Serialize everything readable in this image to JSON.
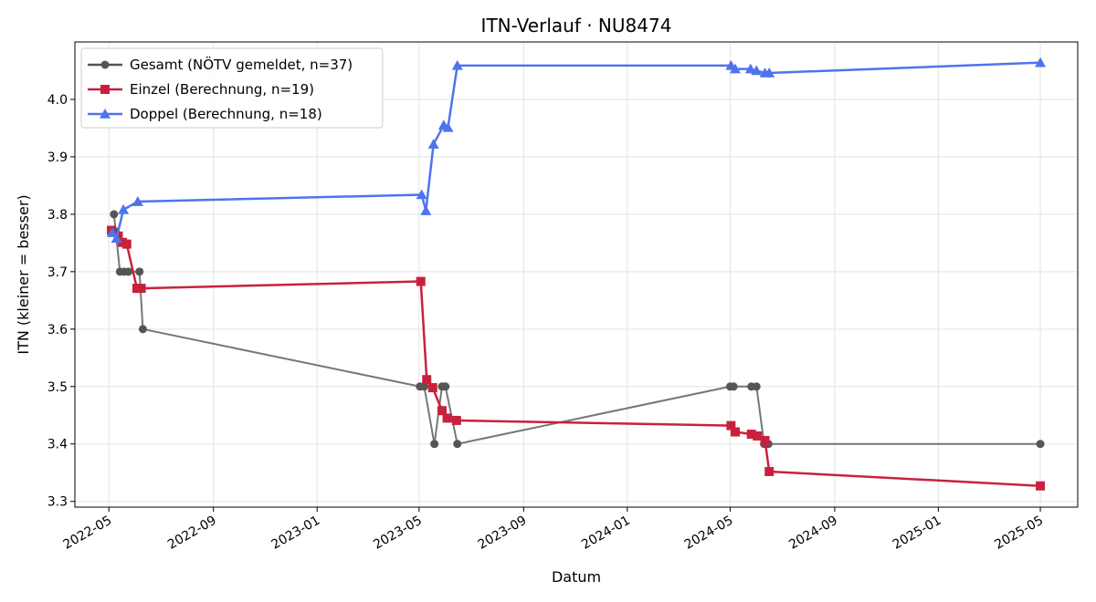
{
  "chart_data": {
    "type": "line",
    "title": "ITN-Verlauf · NU8474",
    "xlabel": "Datum",
    "ylabel": "ITN  (kleiner = besser)",
    "xlim": [
      "2022-03-22",
      "2025-06-14"
    ],
    "ylim": [
      3.29,
      4.1
    ],
    "x_ticks": [
      "2022-05",
      "2022-09",
      "2023-01",
      "2023-05",
      "2023-09",
      "2024-01",
      "2024-05",
      "2024-09",
      "2025-01",
      "2025-05"
    ],
    "y_ticks": [
      3.3,
      3.4,
      3.5,
      3.6,
      3.7,
      3.8,
      3.9,
      4.0
    ],
    "grid": true,
    "legend_position": "top-left",
    "series": [
      {
        "name": "Gesamt (NÖTV gemeldet, n=37)",
        "color": "#555555",
        "marker": "circle",
        "points": [
          [
            "2022-05-07",
            3.8
          ],
          [
            "2022-05-09",
            3.77
          ],
          [
            "2022-05-14",
            3.7
          ],
          [
            "2022-05-19",
            3.7
          ],
          [
            "2022-05-24",
            3.7
          ],
          [
            "2022-06-06",
            3.7
          ],
          [
            "2022-06-10",
            3.6
          ],
          [
            "2023-05-02",
            3.5
          ],
          [
            "2023-05-07",
            3.5
          ],
          [
            "2023-05-19",
            3.4
          ],
          [
            "2023-05-28",
            3.5
          ],
          [
            "2023-06-01",
            3.5
          ],
          [
            "2023-06-15",
            3.4
          ],
          [
            "2024-05-01",
            3.5
          ],
          [
            "2024-05-05",
            3.5
          ],
          [
            "2024-05-26",
            3.5
          ],
          [
            "2024-06-01",
            3.5
          ],
          [
            "2024-06-10",
            3.4
          ],
          [
            "2024-06-15",
            3.4
          ],
          [
            "2025-05-01",
            3.4
          ]
        ]
      },
      {
        "name": "Einzel (Berechnung, n=19)",
        "color": "#c8213e",
        "marker": "square",
        "points": [
          [
            "2022-05-04",
            3.772
          ],
          [
            "2022-05-12",
            3.762
          ],
          [
            "2022-05-17",
            3.751
          ],
          [
            "2022-05-22",
            3.748
          ],
          [
            "2022-06-03",
            3.671
          ],
          [
            "2022-06-08",
            3.671
          ],
          [
            "2023-05-03",
            3.683
          ],
          [
            "2023-05-10",
            3.512
          ],
          [
            "2023-05-17",
            3.498
          ],
          [
            "2023-05-28",
            3.458
          ],
          [
            "2023-06-03",
            3.445
          ],
          [
            "2023-06-14",
            3.441
          ],
          [
            "2024-05-02",
            3.432
          ],
          [
            "2024-05-07",
            3.421
          ],
          [
            "2024-05-26",
            3.417
          ],
          [
            "2024-06-02",
            3.414
          ],
          [
            "2024-06-11",
            3.406
          ],
          [
            "2024-06-16",
            3.352
          ],
          [
            "2025-05-01",
            3.327
          ]
        ]
      },
      {
        "name": "Doppel (Berechnung, n=18)",
        "color": "#4f73ee",
        "marker": "triangle",
        "points": [
          [
            "2022-05-05",
            3.768
          ],
          [
            "2022-05-10",
            3.758
          ],
          [
            "2022-05-18",
            3.808
          ],
          [
            "2022-06-04",
            3.822
          ],
          [
            "2023-05-04",
            3.834
          ],
          [
            "2023-05-09",
            3.806
          ],
          [
            "2023-05-18",
            3.922
          ],
          [
            "2023-05-30",
            3.955
          ],
          [
            "2023-06-04",
            3.951
          ],
          [
            "2023-06-15",
            4.059
          ],
          [
            "2024-05-02",
            4.059
          ],
          [
            "2024-05-07",
            4.053
          ],
          [
            "2024-05-25",
            4.053
          ],
          [
            "2024-06-01",
            4.05
          ],
          [
            "2024-06-11",
            4.046
          ],
          [
            "2024-06-16",
            4.046
          ],
          [
            "2025-05-01",
            4.064
          ]
        ]
      }
    ]
  }
}
